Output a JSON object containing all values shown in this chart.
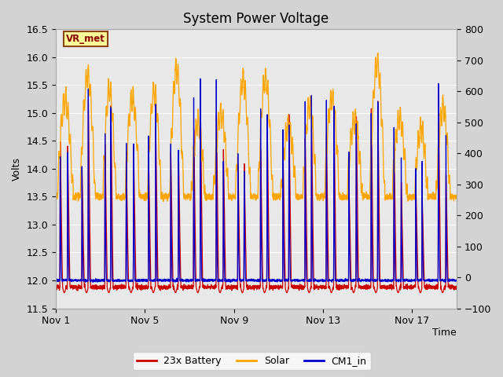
{
  "title": "System Power Voltage",
  "xlabel": "Time",
  "ylabel": "Volts",
  "ylim_left": [
    11.5,
    16.5
  ],
  "ylim_right": [
    -100,
    800
  ],
  "yticks_left": [
    11.5,
    12.0,
    12.5,
    13.0,
    13.5,
    14.0,
    14.5,
    15.0,
    15.5,
    16.0,
    16.5
  ],
  "yticks_right": [
    -100,
    0,
    100,
    200,
    300,
    400,
    500,
    600,
    700,
    800
  ],
  "xtick_labels": [
    "Nov 1",
    "Nov 5",
    "Nov 9",
    "Nov 13",
    "Nov 17"
  ],
  "xtick_positions": [
    0,
    4,
    8,
    12,
    16
  ],
  "xlim": [
    0,
    18
  ],
  "colors": {
    "battery": "#cc0000",
    "solar": "#ffa500",
    "cm1": "#0000cc"
  },
  "legend_labels": [
    "23x Battery",
    "Solar",
    "CM1_in"
  ],
  "fig_bg": "#d3d3d3",
  "plot_bg": "#e8e8e8",
  "grid_color": "#ffffff",
  "title_fontsize": 12,
  "axis_fontsize": 9,
  "legend_fontsize": 9,
  "n_days": 18,
  "n_points": 3600
}
